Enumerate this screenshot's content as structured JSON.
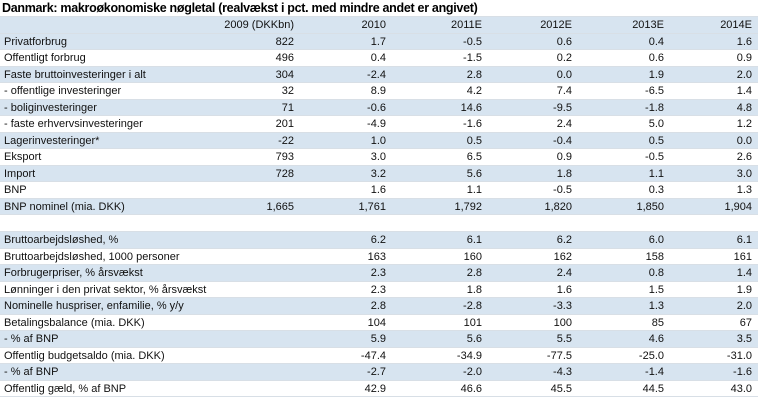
{
  "title": "Danmark: makroøkonomiske nøgletal (realvækst i pct. med mindre andet er angivet)",
  "header": [
    "",
    "2009 (DKKbn)",
    "2010",
    "2011E",
    "2012E",
    "2013E",
    "2014E"
  ],
  "group1": [
    {
      "label": "Privatforbrug",
      "values": [
        "822",
        "1.7",
        "-0.5",
        "0.6",
        "0.4",
        "1.6"
      ]
    },
    {
      "label": "Offentligt forbrug",
      "values": [
        "496",
        "0.4",
        "-1.5",
        "0.2",
        "0.6",
        "0.9"
      ]
    },
    {
      "label": "Faste bruttoinvesteringer i alt",
      "values": [
        "304",
        "-2.4",
        "2.8",
        "0.0",
        "1.9",
        "2.0"
      ]
    },
    {
      "label": " - offentlige investeringer",
      "values": [
        "32",
        "8.9",
        "4.2",
        "7.4",
        "-6.5",
        "1.4"
      ]
    },
    {
      "label": " - boliginvesteringer",
      "values": [
        "71",
        "-0.6",
        "14.6",
        "-9.5",
        "-1.8",
        "4.8"
      ]
    },
    {
      "label": " - faste erhvervsinvesteringer",
      "values": [
        "201",
        "-4.9",
        "-1.6",
        "2.4",
        "5.0",
        "1.2"
      ]
    },
    {
      "label": "Lagerinvesteringer*",
      "values": [
        "-22",
        "1.0",
        "0.5",
        "-0.4",
        "0.5",
        "0.0"
      ]
    },
    {
      "label": "Eksport",
      "values": [
        "793",
        "3.0",
        "6.5",
        "0.9",
        "-0.5",
        "2.6"
      ]
    },
    {
      "label": "Import",
      "values": [
        "728",
        "3.2",
        "5.6",
        "1.8",
        "1.1",
        "3.0"
      ]
    },
    {
      "label": "BNP",
      "values": [
        "",
        "1.6",
        "1.1",
        "-0.5",
        "0.3",
        "1.3"
      ]
    },
    {
      "label": "BNP nominel (mia. DKK)",
      "values": [
        "1,665",
        "1,761",
        "1,792",
        "1,820",
        "1,850",
        "1,904"
      ]
    }
  ],
  "group2": [
    {
      "label": "Bruttoarbejdsløshed, %",
      "values": [
        "",
        "6.2",
        "6.1",
        "6.2",
        "6.0",
        "6.1"
      ]
    },
    {
      "label": "Bruttoarbejdsløshed, 1000 personer",
      "values": [
        "",
        "163",
        "160",
        "162",
        "158",
        "161"
      ]
    },
    {
      "label": "Forbrugerpriser, % årsvækst",
      "values": [
        "",
        "2.3",
        "2.8",
        "2.4",
        "0.8",
        "1.4"
      ]
    },
    {
      "label": "Lønninger i den privat sektor, % årsvækst",
      "values": [
        "",
        "2.3",
        "1.8",
        "1.6",
        "1.5",
        "1.9"
      ]
    },
    {
      "label": "Nominelle huspriser, enfamilie, % y/y",
      "values": [
        "",
        "2.8",
        "-2.8",
        "-3.3",
        "1.3",
        "2.0"
      ]
    },
    {
      "label": "Betalingsbalance (mia. DKK)",
      "values": [
        "",
        "104",
        "101",
        "100",
        "85",
        "67"
      ]
    },
    {
      "label": " - % af BNP",
      "values": [
        "",
        "5.9",
        "5.6",
        "5.5",
        "4.6",
        "3.5"
      ]
    },
    {
      "label": "Offentlig budgetsaldo (mia. DKK)",
      "values": [
        "",
        "-47.4",
        "-34.9",
        "-77.5",
        "-25.0",
        "-31.0"
      ]
    },
    {
      "label": " - % af BNP",
      "values": [
        "",
        "-2.7",
        "-2.0",
        "-4.3",
        "-1.4",
        "-1.6"
      ]
    },
    {
      "label": "Offentlig gæld, % af BNP",
      "values": [
        "",
        "42.9",
        "46.6",
        "45.5",
        "44.5",
        "43.0"
      ]
    }
  ]
}
